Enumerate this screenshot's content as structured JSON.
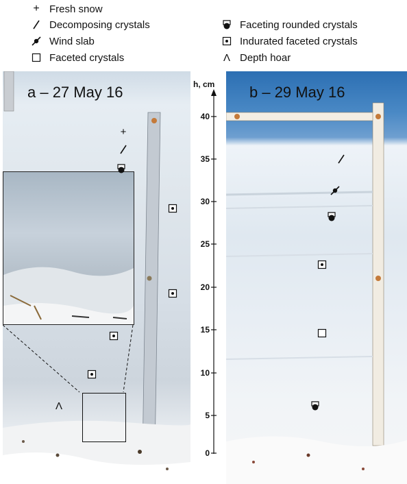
{
  "legend": {
    "items": [
      {
        "symbol": "plus-icon",
        "label": "Fresh snow"
      },
      {
        "symbol": "slash-icon",
        "label": "Decomposing crystals"
      },
      {
        "symbol": "wind-slab-icon",
        "label": "Wind slab"
      },
      {
        "symbol": "open-square-icon",
        "label": "Faceted crystals"
      },
      {
        "symbol": "faceting-rounded-icon",
        "label": "Faceting rounded crystals"
      },
      {
        "symbol": "dotted-square-icon",
        "label": "Indurated faceted crystals"
      },
      {
        "symbol": "caret-icon",
        "label": "Depth hoar"
      }
    ]
  },
  "panels": {
    "a_label": "a – 27 May 16",
    "b_label": "b – 29 May 16"
  },
  "axis": {
    "title": "h, cm",
    "ticks": [
      "40",
      "35",
      "30",
      "25",
      "20",
      "15",
      "10",
      "5",
      "0"
    ]
  }
}
